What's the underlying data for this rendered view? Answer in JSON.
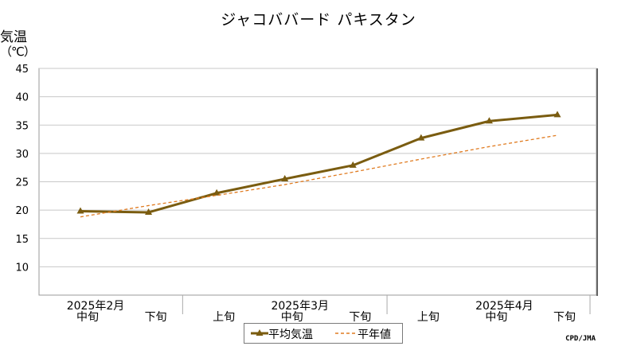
{
  "chart_data": {
    "type": "line",
    "title": "ジャコババード パキスタン",
    "ylabel": "気温",
    "yunit": "（℃）",
    "ylim": [
      5,
      45
    ],
    "yticks": [
      10,
      15,
      20,
      25,
      30,
      35,
      40,
      45
    ],
    "grid": true,
    "categories": [
      "中旬",
      "下旬",
      "上旬",
      "中旬",
      "下旬",
      "上旬",
      "中旬",
      "下旬"
    ],
    "month_labels": [
      {
        "label": "2025年2月",
        "index": 0
      },
      {
        "label": "2025年3月",
        "index": 3
      },
      {
        "label": "2025年4月",
        "index": 6
      }
    ],
    "series": [
      {
        "name": "平均気温",
        "style": "solid-triangle",
        "color": "#7a5c10",
        "values": [
          19.8,
          19.6,
          23.0,
          25.5,
          27.9,
          32.7,
          35.7,
          36.8
        ]
      },
      {
        "name": "平年値",
        "style": "dashed",
        "color": "#e07b20",
        "values": [
          18.8,
          20.8,
          22.6,
          24.5,
          26.7,
          29.0,
          31.2,
          33.2
        ]
      }
    ],
    "legend_position": "bottom-center",
    "credit": "CPD/JMA"
  }
}
